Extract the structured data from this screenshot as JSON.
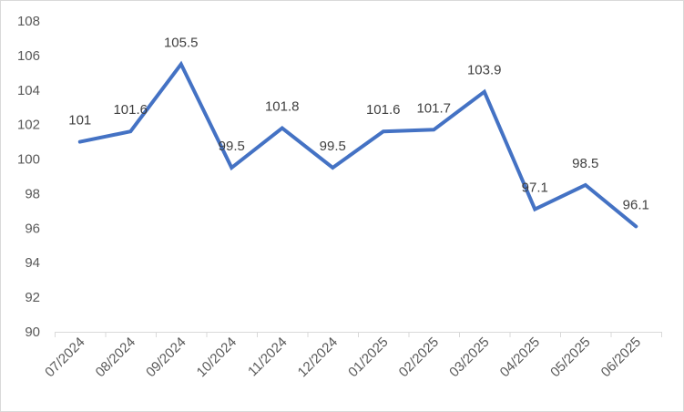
{
  "chart_data": {
    "type": "line",
    "title": "",
    "xlabel": "",
    "ylabel": "",
    "categories": [
      "07/2024",
      "08/2024",
      "09/2024",
      "10/2024",
      "11/2024",
      "12/2024",
      "01/2025",
      "02/2025",
      "03/2025",
      "04/2025",
      "05/2025",
      "06/2025"
    ],
    "series": [
      {
        "values": [
          101,
          101.6,
          105.5,
          99.5,
          101.8,
          99.5,
          101.6,
          101.7,
          103.9,
          97.1,
          98.5,
          96.1
        ],
        "labels": [
          "101",
          "101.6",
          "105.5",
          "99.5",
          "101.8",
          "99.5",
          "101.6",
          "101.7",
          "103.9",
          "97.1",
          "98.5",
          "96.1"
        ]
      }
    ],
    "ylim": [
      90,
      108
    ],
    "yticks": [
      "90",
      "92",
      "94",
      "96",
      "98",
      "100",
      "102",
      "104",
      "106",
      "108"
    ],
    "grid": false,
    "legend": "none",
    "colors": {
      "line": "#4472c4",
      "axis": "#d9d9d9"
    }
  }
}
